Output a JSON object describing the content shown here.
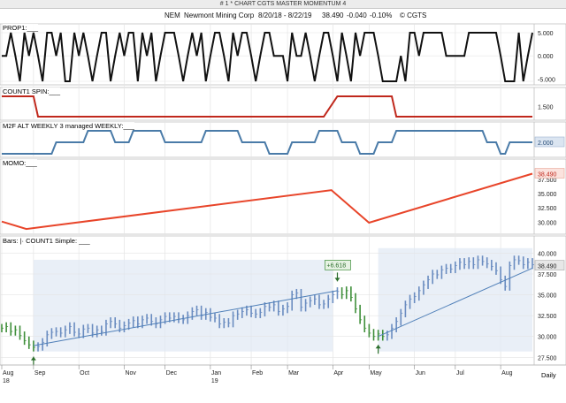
{
  "window": {
    "title": "# 1 * CHART CGTS MASTER MOMENTUM 4"
  },
  "header": {
    "symbol": "NEM",
    "company": "Newmont Mining Corp",
    "date_range": "8/20/18 - 8/22/19",
    "last": "38.490",
    "change": "-0.040",
    "change_pct": "-0.10%",
    "copyright": "© CGTS"
  },
  "colors": {
    "background": "#ffffff",
    "grid": "#e4e4e4",
    "black_line": "#111111",
    "red_line": "#c0281c",
    "blue_step": "#4a7ba8",
    "momo": "#e8452a",
    "bar_blue": "#6a8cc0",
    "bar_green": "#3f8f3a",
    "shade": "#dfe8f4",
    "trend": "#4f7fb8"
  },
  "chart_data": [
    {
      "type": "line",
      "label": "PROP1:___",
      "series": [
        {
          "name": "PROP1",
          "values": [
            0,
            0,
            5,
            0,
            -5.5,
            5,
            0,
            5,
            0,
            -5.5,
            5,
            5,
            0,
            5,
            -5.5,
            -5.5,
            5,
            0,
            5,
            0,
            -5.5,
            0,
            5,
            5,
            -5.5,
            0,
            5,
            0,
            5,
            5,
            -5.5,
            5,
            0,
            5,
            -5.5,
            0,
            5,
            5,
            5,
            0,
            -5.5,
            0,
            5,
            0,
            5,
            -5.5,
            0,
            5,
            5,
            0,
            -5.5,
            5,
            0,
            5,
            5,
            0,
            -5.5,
            0,
            5,
            5,
            0,
            0,
            0,
            -5.5,
            5,
            0,
            0,
            5,
            0,
            -5.5,
            0,
            5,
            5,
            0,
            -5.5,
            5,
            0,
            -5.5,
            5,
            0,
            5,
            5,
            5,
            0,
            -5.5,
            -5.5,
            -5.5,
            -5.5,
            0,
            -5.5,
            5,
            5,
            0,
            5,
            5,
            5,
            5,
            5,
            0,
            0,
            0,
            0,
            0,
            5,
            5,
            5,
            5,
            5,
            5,
            5,
            0,
            -5.5,
            -5.5,
            -5.5,
            5,
            -5.5,
            0,
            5
          ]
        }
      ],
      "ylim": [
        -5.5,
        5
      ],
      "tick_labels": [
        "5.000",
        "0.000",
        "-5.000"
      ]
    },
    {
      "type": "line",
      "label": "COUNT1 SPIN:___",
      "series": [
        {
          "name": "COUNT1 SPIN",
          "segments": [
            [
              0,
              2.0
            ],
            [
              7,
              2.0
            ],
            [
              8,
              1.0
            ],
            [
              71,
              1.0
            ],
            [
              74,
              2.0
            ],
            [
              86,
              2.0
            ],
            [
              87,
              1.0
            ],
            [
              117,
              1.0
            ]
          ]
        }
      ],
      "ylim": [
        1.0,
        2.0
      ],
      "tick_labels": [
        "1.500"
      ],
      "last_value_box": ""
    },
    {
      "type": "line",
      "label": "M2F ALT WEEKLY 3 managed WEEKLY:___",
      "series": [
        {
          "name": "M2F ALT WEEKLY 3 managed WEEKLY",
          "segments": [
            [
              0,
              1.0
            ],
            [
              11,
              1.0
            ],
            [
              12,
              2.0
            ],
            [
              18,
              2.0
            ],
            [
              19,
              3.0
            ],
            [
              24,
              3.0
            ],
            [
              25,
              2.0
            ],
            [
              28,
              2.0
            ],
            [
              29,
              3.0
            ],
            [
              35,
              3.0
            ],
            [
              36,
              2.0
            ],
            [
              44,
              2.0
            ],
            [
              45,
              3.0
            ],
            [
              52,
              3.0
            ],
            [
              53,
              2.0
            ],
            [
              58,
              2.0
            ],
            [
              59,
              1.0
            ],
            [
              63,
              1.0
            ],
            [
              64,
              2.0
            ],
            [
              69,
              2.0
            ],
            [
              70,
              3.0
            ],
            [
              74,
              3.0
            ],
            [
              75,
              2.0
            ],
            [
              78,
              2.0
            ],
            [
              79,
              1.0
            ],
            [
              82,
              1.0
            ],
            [
              83,
              2.0
            ],
            [
              86,
              2.0
            ],
            [
              87,
              3.0
            ],
            [
              106,
              3.0
            ],
            [
              107,
              2.0
            ],
            [
              109,
              2.0
            ],
            [
              110,
              1.0
            ],
            [
              111,
              1.0
            ],
            [
              112,
              2.0
            ],
            [
              117,
              2.0
            ]
          ]
        }
      ],
      "ylim": [
        1.0,
        3.0
      ],
      "last_value": "2.000"
    },
    {
      "type": "line",
      "label": "MOMO:___",
      "series": [
        {
          "name": "MOMO",
          "points": [
            [
              "2018-08-20",
              30.1
            ],
            [
              "2018-09-06",
              28.8
            ],
            [
              "2019-04-05",
              35.6
            ],
            [
              "2019-05-01",
              29.9
            ],
            [
              "2019-08-22",
              38.49
            ]
          ]
        }
      ],
      "ylim": [
        28.5,
        39.5
      ],
      "tick_labels": [
        "37.500",
        "35.000",
        "32.500",
        "30.000"
      ],
      "last_value": "38.490"
    },
    {
      "type": "bar",
      "label": "Bars: |·   COUNT1 Simple: ___",
      "series": [
        {
          "name": "Bars",
          "close": [
            31.0,
            31.2,
            30.6,
            30.8,
            30.1,
            29.5,
            29.0,
            28.7,
            28.8,
            29.3,
            30.2,
            30.5,
            30.6,
            30.4,
            30.8,
            31.2,
            30.5,
            30.3,
            30.9,
            31.0,
            30.4,
            30.8,
            30.6,
            31.5,
            31.8,
            31.5,
            31.0,
            31.3,
            31.6,
            31.9,
            31.5,
            32.0,
            32.2,
            31.8,
            31.5,
            32.0,
            32.4,
            32.2,
            32.4,
            32.1,
            32.0,
            32.5,
            33.0,
            33.2,
            32.5,
            32.9,
            32.3,
            32.2,
            31.5,
            31.7,
            31.6,
            32.5,
            32.7,
            33.0,
            33.2,
            32.8,
            32.7,
            32.9,
            33.6,
            33.5,
            33.8,
            33.0,
            33.3,
            33.6,
            35.0,
            35.2,
            33.5,
            34.0,
            34.3,
            34.5,
            33.8,
            33.9,
            34.5,
            35.0,
            35.4,
            35.0,
            35.5,
            34.7,
            33.3,
            32.0,
            31.0,
            30.4,
            30.0,
            30.3,
            30.0,
            30.2,
            31.0,
            31.8,
            32.8,
            33.8,
            34.5,
            34.8,
            35.5,
            36.2,
            36.8,
            37.5,
            37.4,
            38.0,
            38.2,
            38.1,
            38.5,
            38.9,
            38.6,
            39.0,
            38.6,
            39.2,
            39.0,
            38.7,
            38.4,
            37.9,
            36.8,
            36.0,
            38.5,
            39.2,
            39.1,
            38.6,
            38.9,
            38.6,
            38.49
          ]
        }
      ],
      "ylim": [
        27.0,
        41.0
      ],
      "tick_labels": [
        "40.000",
        "37.500",
        "35.000",
        "32.500",
        "30.000",
        "27.500"
      ],
      "last_value": "38.490",
      "annotation": "+6.618"
    }
  ],
  "x_axis": {
    "months": [
      {
        "label": "Aug",
        "sub": "18",
        "index": 0
      },
      {
        "label": "Sep",
        "index": 7
      },
      {
        "label": "Oct",
        "index": 17
      },
      {
        "label": "Nov",
        "index": 27
      },
      {
        "label": "Dec",
        "index": 36
      },
      {
        "label": "Jan",
        "sub": "19",
        "index": 46
      },
      {
        "label": "Feb",
        "index": 55
      },
      {
        "label": "Mar",
        "index": 63
      },
      {
        "label": "Apr",
        "index": 73
      },
      {
        "label": "May",
        "index": 81
      },
      {
        "label": "Jun",
        "index": 91
      },
      {
        "label": "Jul",
        "index": 100
      },
      {
        "label": "Aug",
        "index": 110
      }
    ],
    "period": "Daily"
  }
}
